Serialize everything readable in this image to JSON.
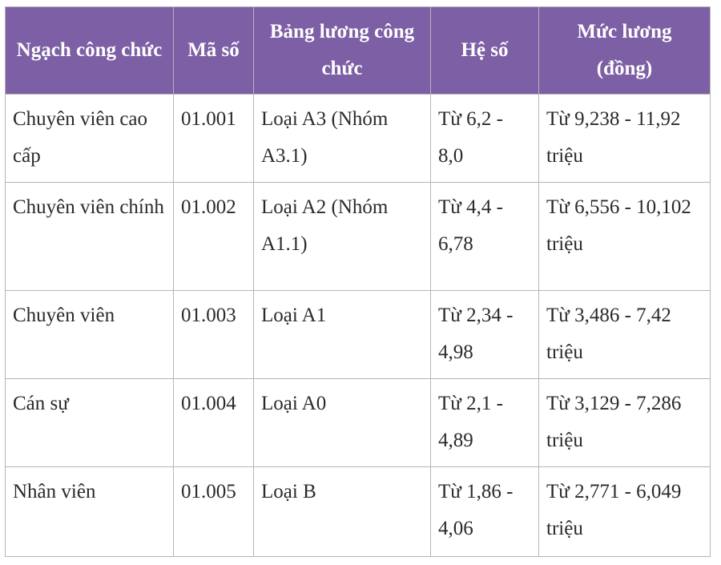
{
  "table": {
    "header": [
      "Ngạch công chức",
      "Mã số",
      "Bảng lương công chức",
      "Hệ số",
      "Mức lương (đồng)"
    ],
    "rows": [
      [
        "Chuyên viên cao cấp",
        "01.001",
        "Loại A3 (Nhóm A3.1)",
        "Từ 6,2 - 8,0",
        "Từ 9,238 - 11,92 triệu"
      ],
      [
        "Chuyên viên chính",
        "01.002",
        "Loại A2 (Nhóm A1.1)",
        "Từ 4,4 - 6,78",
        "Từ 6,556 - 10,102 triệu"
      ],
      [
        "Chuyên viên",
        "01.003",
        "Loại A1",
        "Từ 2,34 - 4,98",
        "Từ 3,486 - 7,42 triệu"
      ],
      [
        "Cán sự",
        "01.004",
        "Loại A0",
        "Từ 2,1 - 4,89",
        "Từ 3,129 - 7,286 triệu"
      ],
      [
        "Nhân viên",
        "01.005",
        "Loại B",
        "Từ 1,86 - 4,06",
        "Từ 2,771 - 6,049 triệu"
      ]
    ]
  }
}
